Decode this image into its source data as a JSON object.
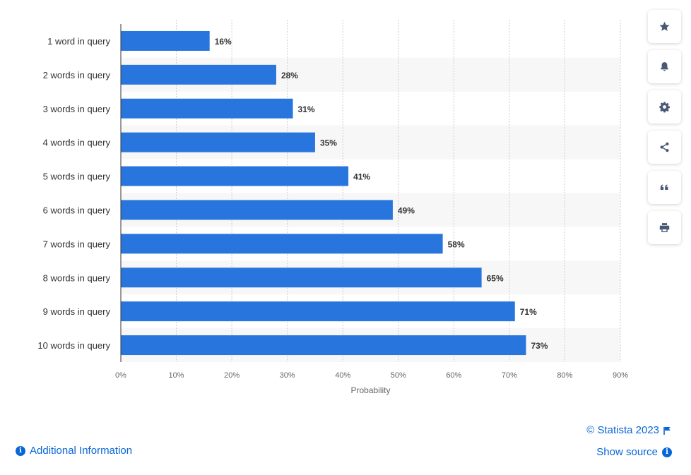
{
  "chart_data": {
    "type": "bar",
    "orientation": "horizontal",
    "categories": [
      "1 word in query",
      "2 words in query",
      "3 words in query",
      "4 words in query",
      "5 words in query",
      "6 words in query",
      "7 words in query",
      "8 words in query",
      "9 words in query",
      "10 words in query"
    ],
    "values": [
      16,
      28,
      31,
      35,
      41,
      49,
      58,
      65,
      71,
      73
    ],
    "value_labels": [
      "16%",
      "28%",
      "31%",
      "35%",
      "41%",
      "49%",
      "58%",
      "65%",
      "71%",
      "73%"
    ],
    "xlabel": "Probability",
    "ylabel": "",
    "xlim": [
      0,
      90
    ],
    "ticks": [
      0,
      10,
      20,
      30,
      40,
      50,
      60,
      70,
      80,
      90
    ],
    "tick_labels": [
      "0%",
      "10%",
      "20%",
      "30%",
      "40%",
      "50%",
      "60%",
      "70%",
      "80%",
      "90%"
    ],
    "grid": true,
    "colors": {
      "bar": "#2876dd",
      "band": "#f7f7f7",
      "grid": "#cccccc"
    }
  },
  "toolbar": {
    "icons": [
      "star-icon",
      "bell-icon",
      "gear-icon",
      "share-icon",
      "quote-icon",
      "print-icon"
    ]
  },
  "footer": {
    "additional_info": "Additional Information",
    "copyright": "© Statista 2023",
    "show_source": "Show source",
    "link_color": "#0866d6"
  }
}
